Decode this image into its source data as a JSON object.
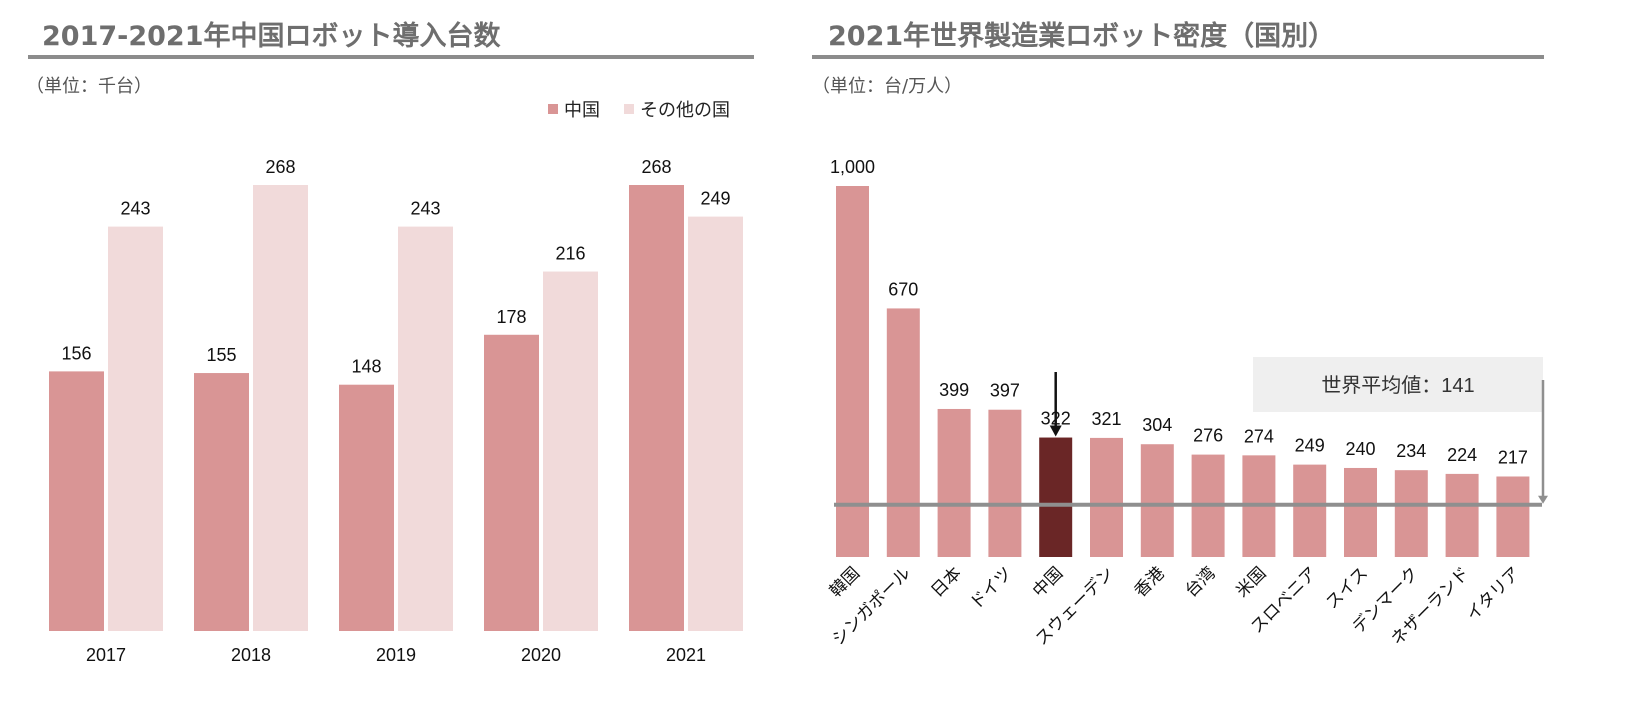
{
  "colors": {
    "china": "#d99595",
    "other": "#f1dada",
    "highlight": "#6a2626",
    "title": "#6e6e6e",
    "rule": "#8c8c8c",
    "avg_line": "#8f8f8f",
    "avg_box": "#efefef"
  },
  "left": {
    "title": "2017-2021年中国ロボット導入台数",
    "unit": "（単位：千台）",
    "legend": [
      "中国",
      "その他の国"
    ]
  },
  "right": {
    "title": "2021年世界製造業ロボット密度（国別）",
    "unit": "（単位：台/万人）",
    "avg_label": "世界平均値：141"
  },
  "chart_data": [
    {
      "type": "bar",
      "title": "2017-2021年中国ロボット導入台数",
      "categories": [
        "2017",
        "2018",
        "2019",
        "2020",
        "2021"
      ],
      "series": [
        {
          "name": "中国",
          "values": [
            156,
            155,
            148,
            178,
            268
          ],
          "labels": [
            "156",
            "155",
            "148",
            "178",
            "268"
          ]
        },
        {
          "name": "その他の国",
          "values": [
            243,
            268,
            243,
            216,
            249
          ],
          "labels": [
            "243",
            "268",
            "243",
            "216",
            "249"
          ]
        }
      ],
      "ylim": [
        0,
        300
      ],
      "grid": false,
      "legend": "top-right"
    },
    {
      "type": "bar",
      "title": "2021年世界製造業ロボット密度（国別）",
      "categories": [
        "韓国",
        "シンガポール",
        "日本",
        "ドイツ",
        "中国",
        "スウェーデン",
        "香港",
        "台湾",
        "米国",
        "スロベニア",
        "スイス",
        "デンマーク",
        "ネザーランド",
        "イタリア"
      ],
      "values": [
        1000,
        670,
        399,
        397,
        322,
        321,
        304,
        276,
        274,
        249,
        240,
        234,
        224,
        217
      ],
      "labels": [
        "1,000",
        "670",
        "399",
        "397",
        "322",
        "321",
        "304",
        "276",
        "274",
        "249",
        "240",
        "234",
        "224",
        "217"
      ],
      "highlight_index": 4,
      "reference_line": {
        "value": 141,
        "label": "世界平均値：141"
      },
      "ylim": [
        0,
        1000
      ],
      "grid": false
    }
  ]
}
